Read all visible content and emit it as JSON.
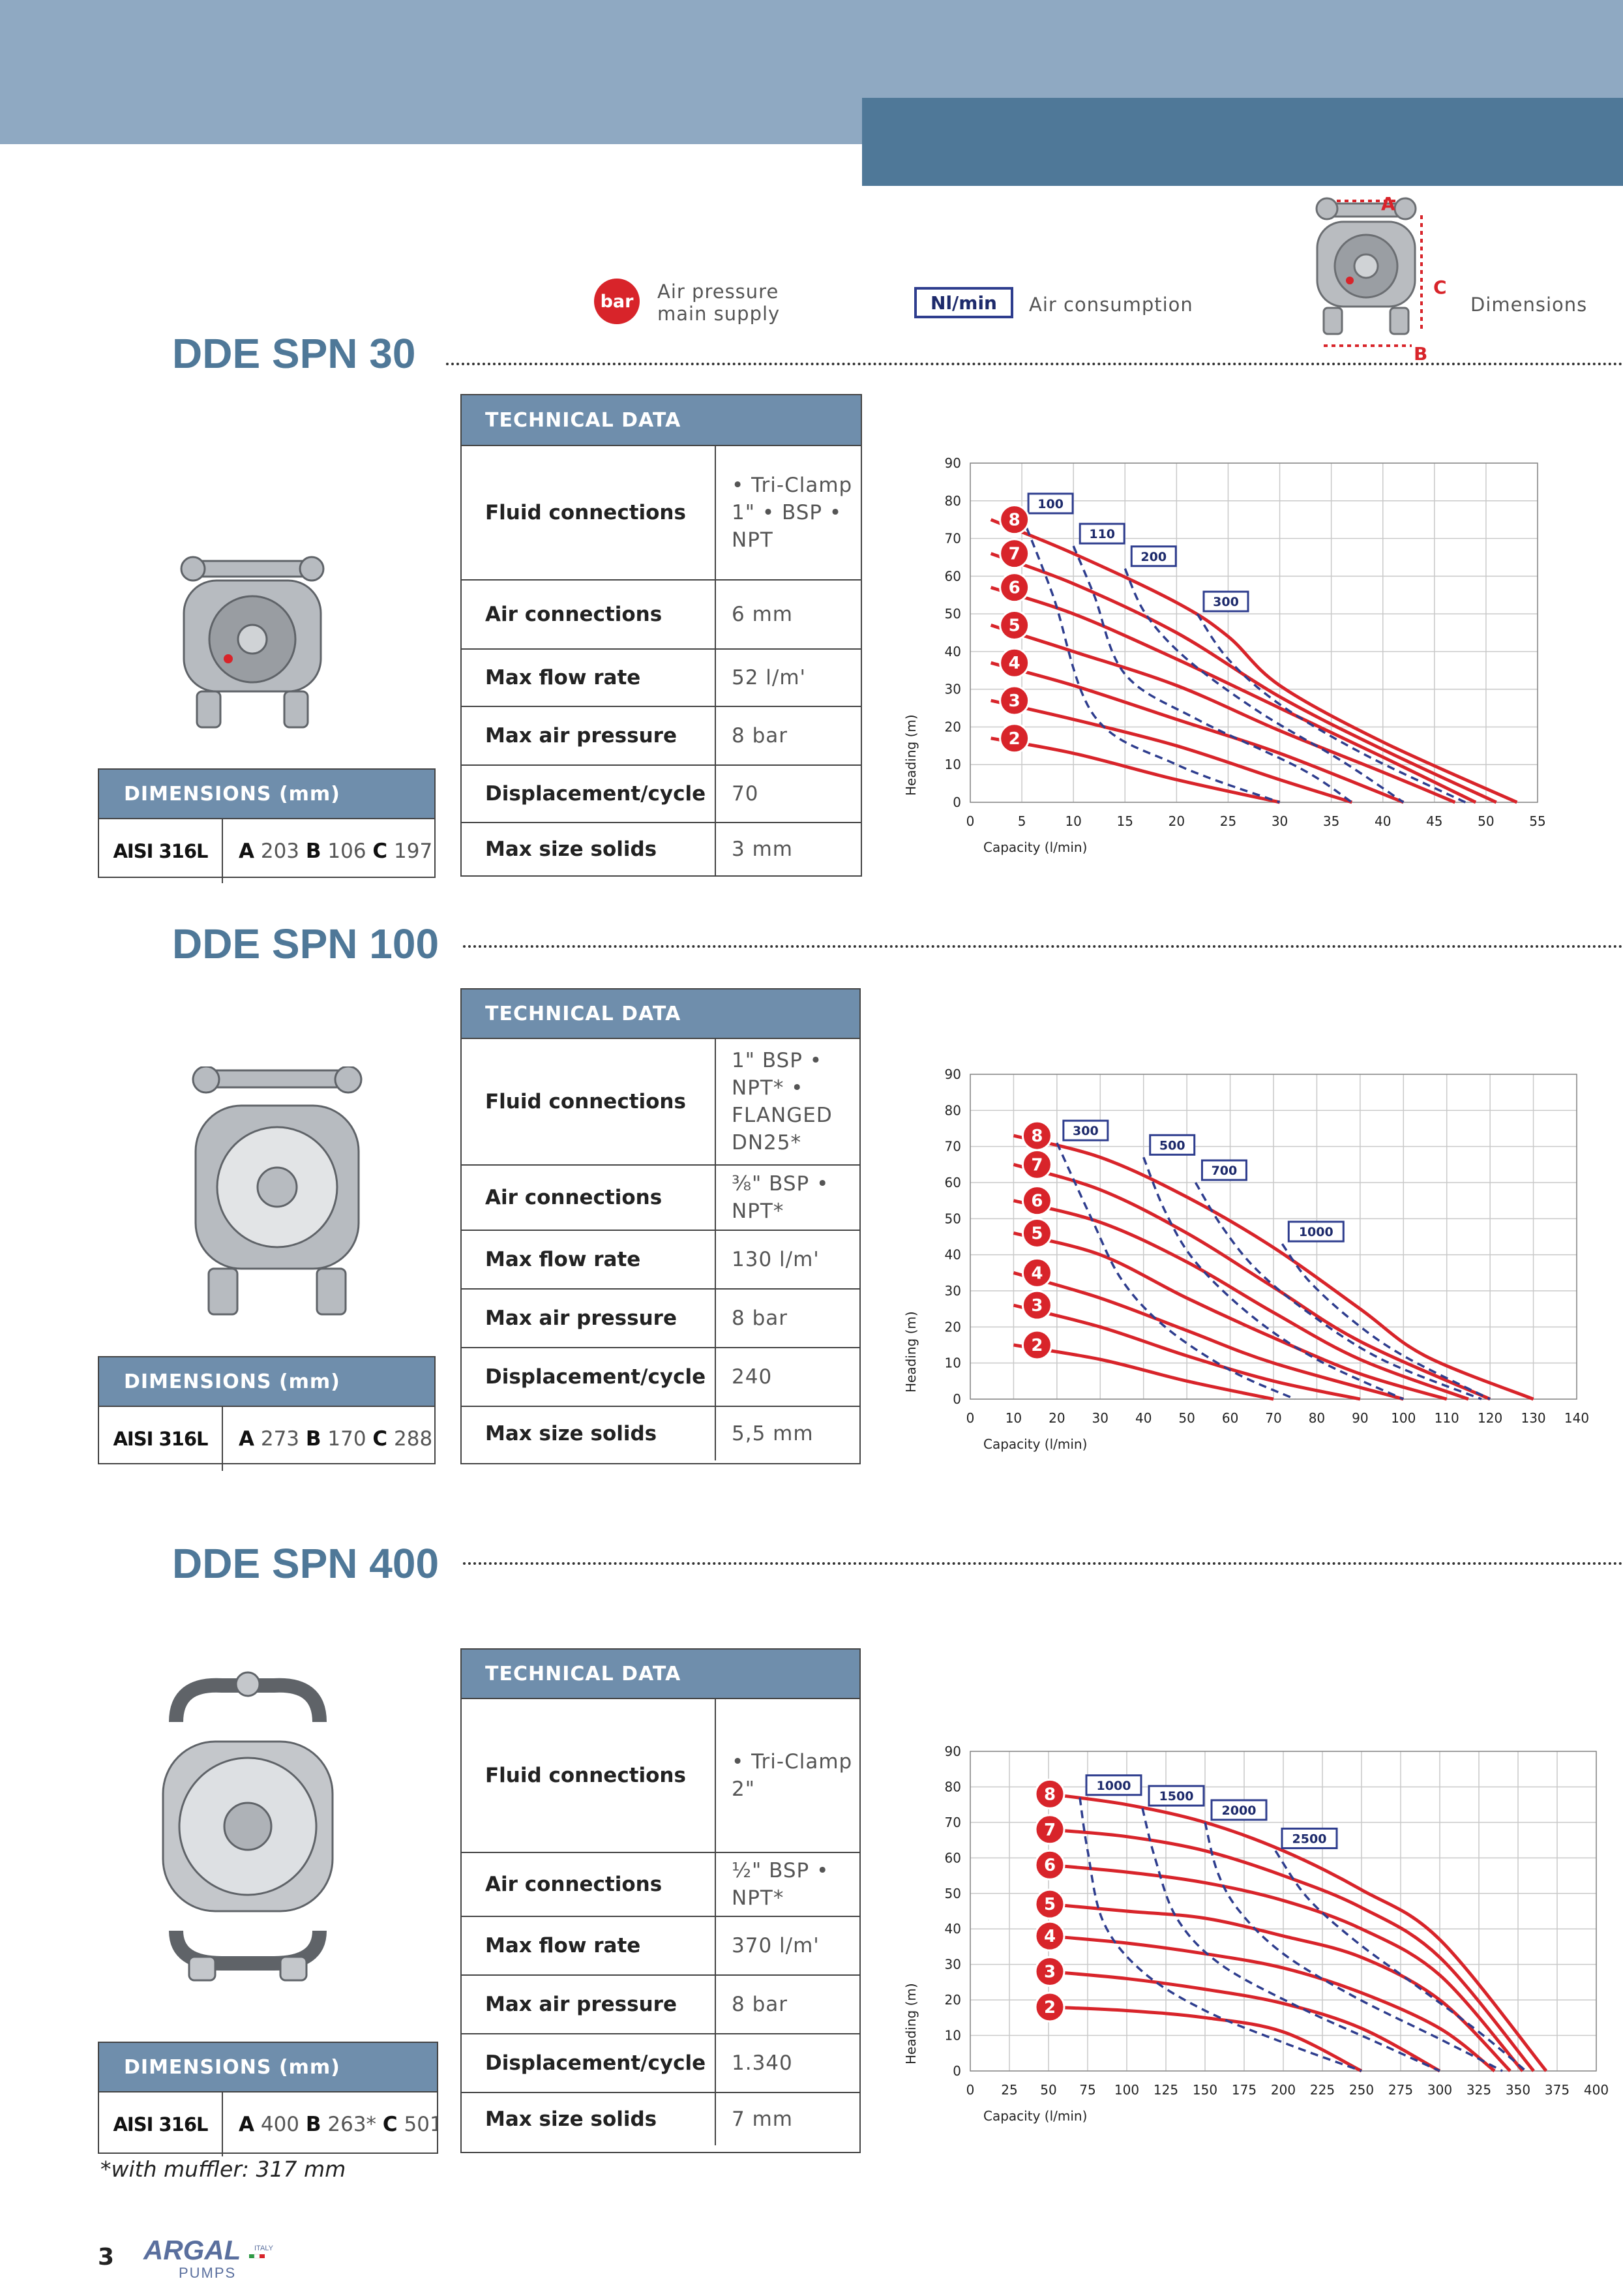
{
  "legend": {
    "bar_badge": "bar",
    "air_pressure": [
      "Air pressure",
      "main supply"
    ],
    "nl_badge": "Nl/min",
    "air_consumption": "Air consumption",
    "dimensions": "Dimensions",
    "dim_letters": [
      "A",
      "B",
      "C"
    ]
  },
  "models": [
    {
      "title": "DDE SPN 30",
      "tech_header": "TECHNICAL DATA",
      "tech": [
        {
          "label": "Fluid connections",
          "value": "• Tri-Clamp 1\" • BSP • NPT"
        },
        {
          "label": "Air connections",
          "value": "6 mm"
        },
        {
          "label": "Max flow rate",
          "value": "52 l/m'"
        },
        {
          "label": "Max air pressure",
          "value": "8 bar"
        },
        {
          "label": "Displacement/cycle",
          "value": "70"
        },
        {
          "label": "Max size solids",
          "value": "3 mm"
        }
      ],
      "dim_header": "DIMENSIONS (mm)",
      "dim_material": "AISI 316L",
      "dim": {
        "a_label": "A",
        "a": "203",
        "b_label": "B",
        "b": "106",
        "c_label": "C",
        "c": "197"
      }
    },
    {
      "title": "DDE SPN 100",
      "tech_header": "TECHNICAL DATA",
      "tech": [
        {
          "label": "Fluid connections",
          "value": "1\" BSP • NPT* • FLANGED DN25*"
        },
        {
          "label": "Air connections",
          "value": "⅜\" BSP • NPT*"
        },
        {
          "label": "Max flow rate",
          "value": "130 l/m'"
        },
        {
          "label": "Max air pressure",
          "value": "8 bar"
        },
        {
          "label": "Displacement/cycle",
          "value": "240"
        },
        {
          "label": "Max size solids",
          "value": "5,5 mm"
        }
      ],
      "dim_header": "DIMENSIONS (mm)",
      "dim_material": "AISI 316L",
      "dim": {
        "a_label": "A",
        "a": "273",
        "b_label": "B",
        "b": "170",
        "c_label": "C",
        "c": "288"
      }
    },
    {
      "title": "DDE SPN 400",
      "tech_header": "TECHNICAL DATA",
      "tech": [
        {
          "label": "Fluid connections",
          "value": "• Tri-Clamp 2\""
        },
        {
          "label": "Air connections",
          "value": "½\" BSP • NPT*"
        },
        {
          "label": "Max flow rate",
          "value": "370 l/m'"
        },
        {
          "label": "Max air pressure",
          "value": "8 bar"
        },
        {
          "label": "Displacement/cycle",
          "value": "1.340"
        },
        {
          "label": "Max size solids",
          "value": "7 mm"
        }
      ],
      "dim_header": "DIMENSIONS (mm)",
      "dim_material": "AISI 316L",
      "dim": {
        "a_label": "A",
        "a": "400",
        "b_label": "B",
        "b": "263*",
        "c_label": "C",
        "c": "501"
      }
    }
  ],
  "footnote": "*with muffler: 317 mm",
  "page_number": "3",
  "logo": {
    "brand": "ARGAL",
    "sub": "PUMPS",
    "country": "ITALY"
  },
  "chart_data": [
    {
      "type": "line",
      "xlabel": "Capacity (l/min)",
      "ylabel": "Heading (m)",
      "xlim": [
        0,
        55
      ],
      "ylim": [
        0,
        90
      ],
      "xticks": [
        0,
        5,
        10,
        15,
        20,
        25,
        30,
        35,
        40,
        45,
        50,
        55
      ],
      "yticks": [
        0,
        10,
        20,
        30,
        40,
        50,
        60,
        70,
        80,
        90
      ],
      "series": [
        {
          "name": "2",
          "x": [
            2,
            10,
            20,
            30
          ],
          "y": [
            17,
            13,
            6,
            0
          ]
        },
        {
          "name": "3",
          "x": [
            2,
            10,
            20,
            30,
            37
          ],
          "y": [
            27,
            22,
            15,
            6,
            0
          ]
        },
        {
          "name": "4",
          "x": [
            2,
            10,
            20,
            30,
            42
          ],
          "y": [
            37,
            31,
            22,
            13,
            0
          ]
        },
        {
          "name": "5",
          "x": [
            2,
            10,
            20,
            30,
            40,
            47
          ],
          "y": [
            47,
            40,
            31,
            19,
            8,
            0
          ]
        },
        {
          "name": "6",
          "x": [
            2,
            10,
            20,
            30,
            40,
            49
          ],
          "y": [
            57,
            50,
            38,
            25,
            12,
            0
          ]
        },
        {
          "name": "7",
          "x": [
            2,
            10,
            20,
            30,
            40,
            51
          ],
          "y": [
            66,
            58,
            45,
            28,
            14,
            0
          ]
        },
        {
          "name": "8",
          "x": [
            2,
            10,
            20,
            25,
            30,
            40,
            53
          ],
          "y": [
            75,
            66,
            53,
            44,
            31,
            16,
            0
          ]
        }
      ],
      "air_consumption": [
        {
          "label": "100",
          "x": [
            5,
            8,
            12,
            20,
            30
          ],
          "y": [
            76,
            55,
            23,
            10,
            0
          ]
        },
        {
          "label": "110",
          "x": [
            10,
            12,
            15,
            22,
            32,
            37
          ],
          "y": [
            68,
            55,
            34,
            22,
            9,
            0
          ]
        },
        {
          "label": "200",
          "x": [
            15,
            17,
            21,
            28,
            36,
            42
          ],
          "y": [
            62,
            50,
            38,
            24,
            11,
            0
          ]
        },
        {
          "label": "300",
          "x": [
            22,
            25,
            30,
            38,
            48
          ],
          "y": [
            50,
            38,
            26,
            13,
            0
          ]
        }
      ],
      "pressure_labels": [
        "2",
        "3",
        "4",
        "5",
        "6",
        "7",
        "8"
      ]
    },
    {
      "type": "line",
      "xlabel": "Capacity (l/min)",
      "ylabel": "Heading (m)",
      "xlim": [
        0,
        140
      ],
      "ylim": [
        0,
        90
      ],
      "xticks": [
        0,
        10,
        20,
        30,
        40,
        50,
        60,
        70,
        80,
        90,
        100,
        110,
        120,
        130,
        140
      ],
      "yticks": [
        0,
        10,
        20,
        30,
        40,
        50,
        60,
        70,
        80,
        90
      ],
      "series": [
        {
          "name": "2",
          "x": [
            10,
            30,
            50,
            70
          ],
          "y": [
            15,
            11,
            5,
            0
          ]
        },
        {
          "name": "3",
          "x": [
            10,
            30,
            50,
            70,
            90
          ],
          "y": [
            26,
            20,
            12,
            5,
            0
          ]
        },
        {
          "name": "4",
          "x": [
            10,
            30,
            50,
            70,
            100
          ],
          "y": [
            35,
            28,
            19,
            10,
            0
          ]
        },
        {
          "name": "5",
          "x": [
            10,
            30,
            50,
            70,
            90,
            110
          ],
          "y": [
            46,
            40,
            28,
            17,
            7,
            0
          ]
        },
        {
          "name": "6",
          "x": [
            10,
            30,
            50,
            70,
            90,
            115
          ],
          "y": [
            55,
            49,
            38,
            24,
            11,
            0
          ]
        },
        {
          "name": "7",
          "x": [
            10,
            30,
            50,
            70,
            90,
            120
          ],
          "y": [
            65,
            58,
            46,
            31,
            16,
            0
          ]
        },
        {
          "name": "8",
          "x": [
            10,
            30,
            50,
            70,
            90,
            105,
            130
          ],
          "y": [
            73,
            67,
            56,
            42,
            25,
            12,
            0
          ]
        }
      ],
      "air_consumption": [
        {
          "label": "300",
          "x": [
            20,
            28,
            35,
            45,
            60,
            75
          ],
          "y": [
            71,
            50,
            33,
            20,
            8,
            0
          ]
        },
        {
          "label": "500",
          "x": [
            40,
            45,
            52,
            65,
            80,
            100
          ],
          "y": [
            67,
            52,
            38,
            23,
            11,
            0
          ]
        },
        {
          "label": "700",
          "x": [
            52,
            58,
            66,
            78,
            95,
            118
          ],
          "y": [
            60,
            48,
            36,
            24,
            11,
            0
          ]
        },
        {
          "label": "1000",
          "x": [
            72,
            78,
            88,
            100,
            120
          ],
          "y": [
            43,
            33,
            22,
            12,
            0
          ]
        }
      ],
      "pressure_labels": [
        "2",
        "3",
        "4",
        "5",
        "6",
        "7",
        "8"
      ]
    },
    {
      "type": "line",
      "xlabel": "Capacity (l/min)",
      "ylabel": "Heading (m)",
      "xlim": [
        0,
        400
      ],
      "ylim": [
        0,
        90
      ],
      "xticks": [
        0,
        25,
        50,
        75,
        100,
        125,
        150,
        175,
        200,
        225,
        250,
        275,
        300,
        325,
        350,
        375,
        400
      ],
      "yticks": [
        0,
        10,
        20,
        30,
        40,
        50,
        60,
        70,
        80,
        90
      ],
      "series": [
        {
          "name": "2",
          "x": [
            50,
            100,
            150,
            200,
            250
          ],
          "y": [
            18,
            17,
            15,
            11,
            0
          ]
        },
        {
          "name": "3",
          "x": [
            50,
            100,
            150,
            200,
            250,
            300
          ],
          "y": [
            28,
            26,
            23,
            19,
            12,
            0
          ]
        },
        {
          "name": "4",
          "x": [
            50,
            100,
            150,
            200,
            250,
            300,
            335
          ],
          "y": [
            38,
            36,
            33,
            29,
            22,
            12,
            0
          ]
        },
        {
          "name": "5",
          "x": [
            50,
            100,
            150,
            200,
            250,
            300,
            345
          ],
          "y": [
            47,
            45,
            43,
            38,
            32,
            20,
            0
          ]
        },
        {
          "name": "6",
          "x": [
            50,
            100,
            150,
            200,
            250,
            300,
            353
          ],
          "y": [
            58,
            56,
            53,
            48,
            40,
            27,
            0
          ]
        },
        {
          "name": "7",
          "x": [
            50,
            100,
            150,
            200,
            250,
            300,
            360
          ],
          "y": [
            68,
            66,
            62,
            55,
            46,
            32,
            0
          ]
        },
        {
          "name": "8",
          "x": [
            50,
            100,
            150,
            200,
            250,
            300,
            368
          ],
          "y": [
            78,
            75,
            70,
            62,
            51,
            37,
            0
          ]
        }
      ],
      "air_consumption": [
        {
          "label": "1000",
          "x": [
            70,
            75,
            85,
            110,
            150,
            200,
            250
          ],
          "y": [
            77,
            62,
            42,
            28,
            17,
            8,
            0
          ]
        },
        {
          "label": "1500",
          "x": [
            110,
            118,
            132,
            160,
            210,
            260,
            300
          ],
          "y": [
            74,
            60,
            43,
            30,
            18,
            8,
            0
          ]
        },
        {
          "label": "2000",
          "x": [
            150,
            158,
            172,
            200,
            245,
            300,
            340
          ],
          "y": [
            70,
            56,
            45,
            33,
            21,
            9,
            0
          ]
        },
        {
          "label": "2500",
          "x": [
            195,
            215,
            245,
            285,
            325,
            355
          ],
          "y": [
            62,
            49,
            37,
            24,
            11,
            0
          ]
        }
      ],
      "pressure_labels": [
        "2",
        "3",
        "4",
        "5",
        "6",
        "7",
        "8"
      ]
    }
  ]
}
